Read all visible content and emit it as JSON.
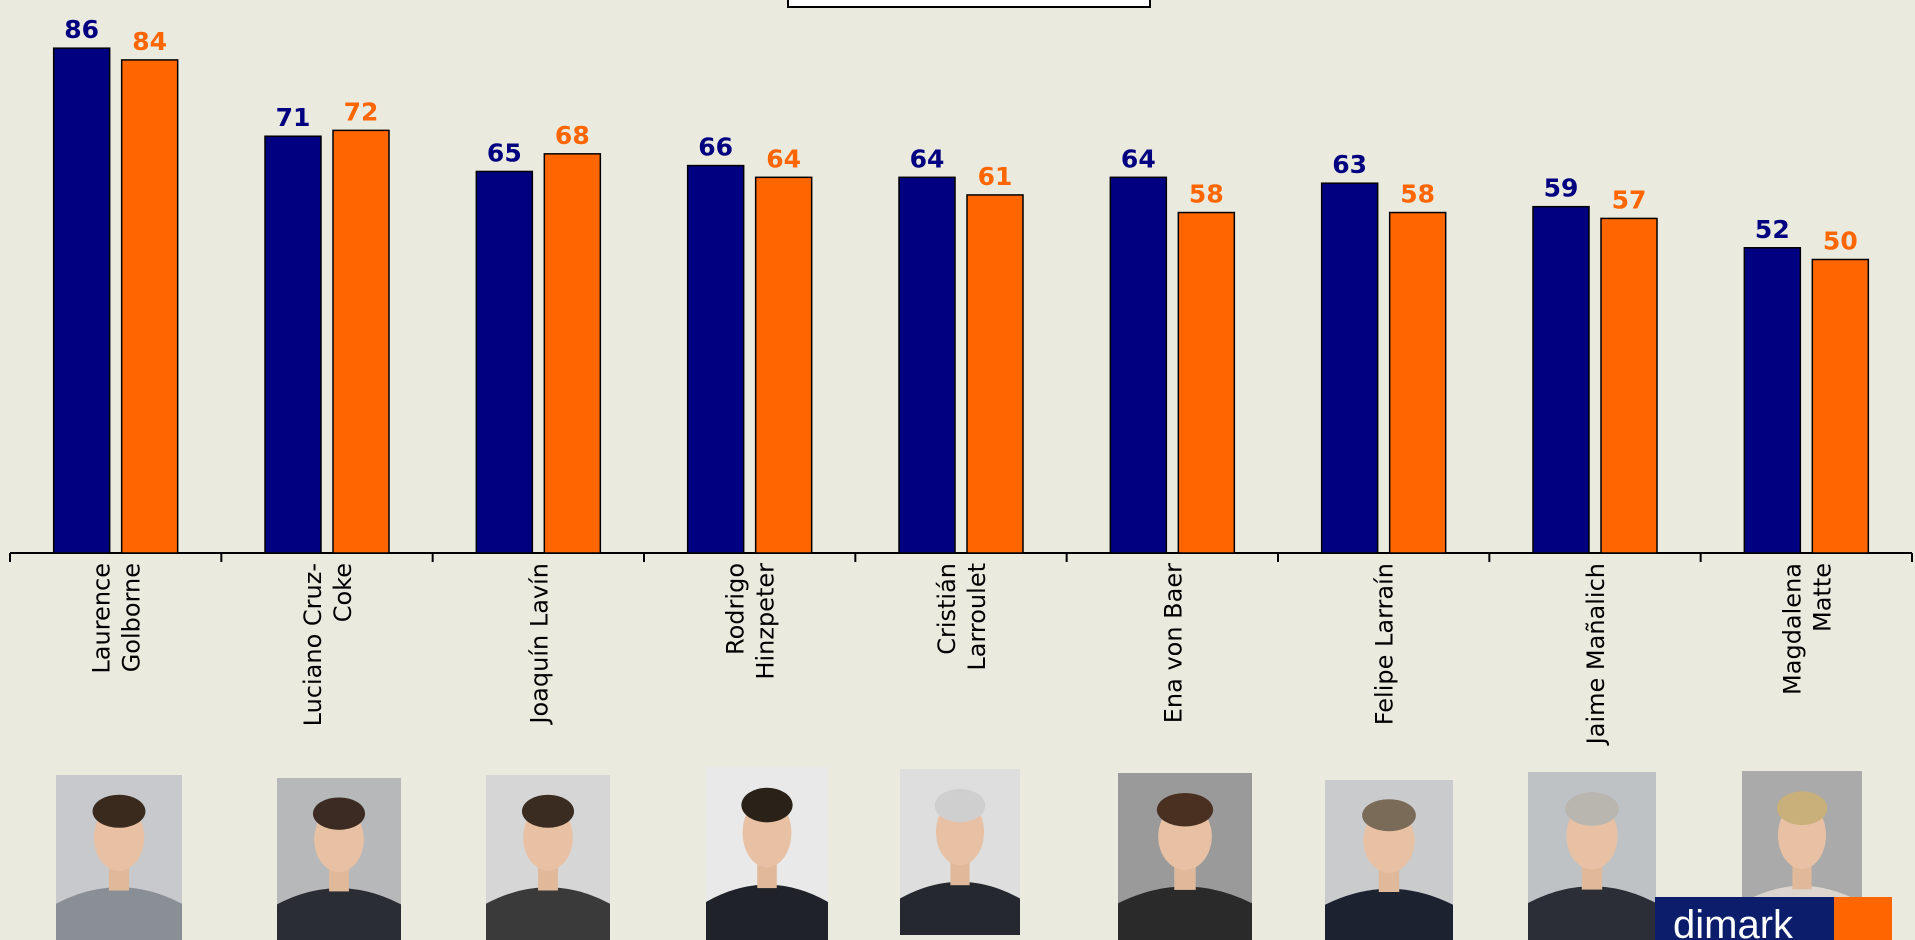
{
  "chart_data": {
    "type": "bar",
    "categories": [
      "Laurence Golborne",
      "Luciano Cruz-Coke",
      "Joaquín Lavín",
      "Rodrigo Hinzpeter",
      "Cristián Larroulet",
      "Ena von Baer",
      "Felipe Larraín",
      "Jaime Mañalich",
      "Magdalena Matte"
    ],
    "category_label_lines": [
      [
        "Laurence",
        "Golborne"
      ],
      [
        "Luciano Cruz-",
        "Coke"
      ],
      [
        "Joaquín Lavín"
      ],
      [
        "Rodrigo",
        "Hinzpeter"
      ],
      [
        "Cristián",
        "Larroulet"
      ],
      [
        "Ena von Baer"
      ],
      [
        "Felipe Larraín"
      ],
      [
        "Jaime Mañalich"
      ],
      [
        "Magdalena",
        "Matte"
      ]
    ],
    "series": [
      {
        "color": "#000080",
        "values": [
          86,
          71,
          65,
          66,
          64,
          64,
          63,
          59,
          52
        ]
      },
      {
        "color": "#FF6600",
        "values": [
          84,
          72,
          68,
          64,
          61,
          58,
          58,
          57,
          50
        ]
      }
    ],
    "ylim": [
      0,
      90
    ],
    "grid": false,
    "data_labels": true
  },
  "logo": {
    "text": "dimark"
  },
  "photos": [
    "portrait-laurence-golborne",
    "portrait-luciano-cruz-coke",
    "portrait-joaquin-lavin",
    "portrait-rodrigo-hinzpeter",
    "portrait-cristian-larroulet",
    "portrait-ena-von-baer",
    "portrait-felipe-larrain",
    "portrait-jaime-manalich",
    "portrait-magdalena-matte"
  ]
}
